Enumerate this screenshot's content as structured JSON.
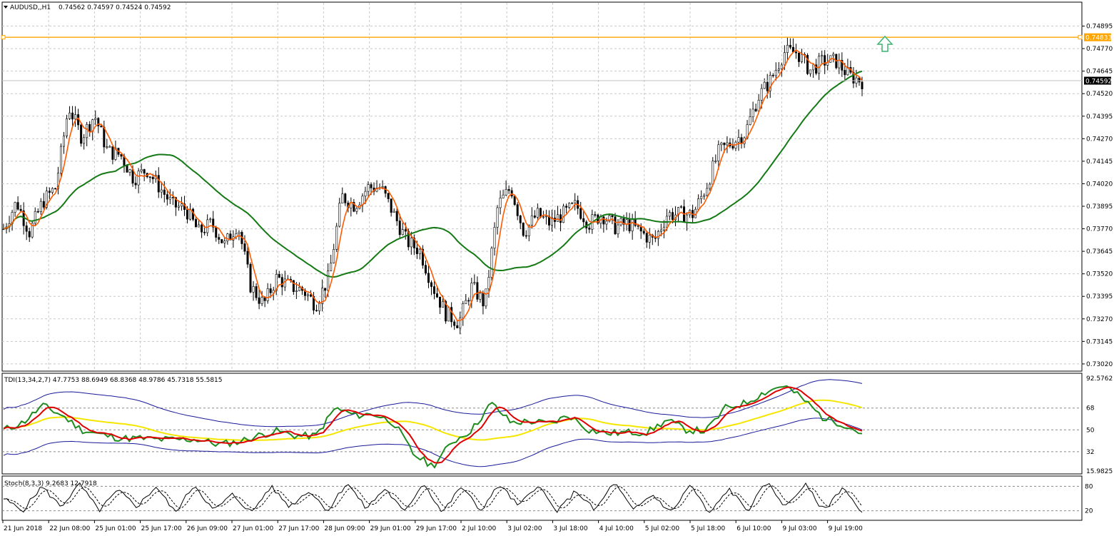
{
  "main_chart": {
    "title": "AUDUSD,,H1",
    "ohlc": "0.74562 0.74597 0.74524 0.74592",
    "price_labels": [
      "0.74895",
      "0.74770",
      "0.74645",
      "0.74520",
      "0.74395",
      "0.74270",
      "0.74145",
      "0.74020",
      "0.73895",
      "0.73770",
      "0.73645",
      "0.73520",
      "0.73395",
      "0.73270",
      "0.73145",
      "0.73020"
    ],
    "hline_label": "0.74833",
    "bid_label": "0.74592",
    "arrow": "up-arrow",
    "price_range": [
      0.7298,
      0.7502
    ]
  },
  "tdi": {
    "title": "TDI(13,34,2,7) 47.7753 88.6949 68.8368 48.9786 45.7318 55.5815",
    "levels": [
      "92.5762",
      "68",
      "50",
      "32",
      "15.9825"
    ],
    "range": [
      15.9825,
      92.5762
    ]
  },
  "stoch": {
    "title": "Stoch(8,3,3) 9.2683 12.7918",
    "levels": [
      "80",
      "20"
    ]
  },
  "time_labels": [
    "21 Jun 2018",
    "22 Jun 08:00",
    "25 Jun 01:00",
    "25 Jun 17:00",
    "26 Jun 09:00",
    "27 Jun 01:00",
    "27 Jun 17:00",
    "28 Jun 09:00",
    "29 Jun 01:00",
    "29 Jun 17:00",
    "2 Jul 10:00",
    "3 Jul 02:00",
    "3 Jul 18:00",
    "4 Jul 10:00",
    "5 Jul 02:00",
    "5 Jul 18:00",
    "6 Jul 10:00",
    "9 Jul 03:00",
    "9 Jul 19:00"
  ],
  "colors": {
    "fast_ma": "#ff5a00",
    "slow_ma": "#157a15",
    "horizontal_line": "#ffa500",
    "bid_line": "#c0c0c0",
    "arrow": "#3cb371",
    "tdi_bands": "#1a1a9a",
    "tdi_yellow": "#f5e600",
    "tdi_red": "#e00000",
    "tdi_green": "#1e8c1e"
  },
  "chart_data": [
    {
      "type": "line",
      "series": [
        {
          "name": "",
          "values": [
            0.7377,
            0.7392,
            0.7375,
            0.7392,
            0.74,
            0.7445,
            0.7428,
            0.744,
            0.742,
            0.7418,
            0.7405,
            0.741,
            0.74,
            0.739,
            0.7388,
            0.7375,
            0.738,
            0.7368,
            0.738,
            0.7345,
            0.7335,
            0.735,
            0.7345,
            0.7343,
            0.7335,
            0.735,
            0.7395,
            0.739,
            0.74,
            0.74,
            0.7385,
            0.737,
            0.7365,
            0.7345,
            0.733,
            0.7325,
            0.7345,
            0.7335,
            0.739,
            0.74,
            0.7375,
            0.7385,
            0.738,
            0.7385,
            0.739,
            0.738,
            0.7385,
            0.7378,
            0.738,
            0.7375,
            0.737,
            0.7385,
            0.7385,
            0.7385,
            0.74,
            0.742,
            0.7425,
            0.743,
            0.745,
            0.746,
            0.7475,
            0.7475,
            0.7465,
            0.747,
            0.747,
            0.7462,
            0.7459
          ]
        }
      ]
    },
    {
      "type": "line",
      "series": [
        {
          "name": "",
          "values": [
            50,
            56,
            70,
            62,
            50,
            46,
            43,
            43,
            42,
            42,
            42,
            38,
            40,
            45,
            49,
            45,
            45,
            68,
            62,
            63,
            56,
            30,
            20,
            40,
            50,
            72,
            56,
            57,
            55,
            62,
            50,
            47,
            48,
            48,
            58,
            50,
            49,
            68,
            72,
            81,
            87,
            75,
            60,
            55,
            47
          ]
        }
      ]
    },
    {
      "type": "line",
      "series": [
        {
          "name": "",
          "values": [
            50,
            20,
            80,
            30,
            85,
            20,
            70,
            30,
            80,
            15,
            85,
            20,
            60,
            15,
            80,
            30,
            70,
            20,
            90,
            25,
            75,
            15,
            90,
            15,
            80,
            20,
            85,
            30,
            85,
            15,
            70,
            20,
            90,
            20,
            60,
            15,
            85,
            10,
            75,
            20,
            90,
            30,
            85,
            20,
            80,
            10
          ]
        }
      ]
    }
  ]
}
